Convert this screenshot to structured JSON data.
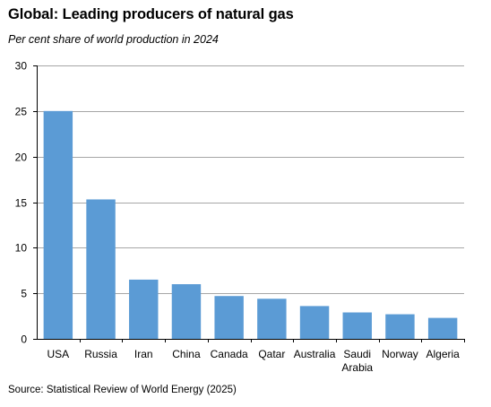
{
  "title": "Global: Leading producers of natural gas",
  "subtitle": "Per cent share of world production in 2024",
  "source": "Source: Statistical Review of World Energy (2025)",
  "colors": {
    "bar": "#5b9bd5",
    "grid": "#a6a6a6",
    "axis": "#000000"
  },
  "chart_data": {
    "type": "bar",
    "title": "Global: Leading producers of natural gas",
    "subtitle": "Per cent share of world production in 2024",
    "xlabel": "",
    "ylabel": "",
    "categories": [
      "USA",
      "Russia",
      "Iran",
      "China",
      "Canada",
      "Qatar",
      "Australia",
      "Saudi Arabia",
      "Norway",
      "Algeria"
    ],
    "category_lines": [
      [
        "USA"
      ],
      [
        "Russia"
      ],
      [
        "Iran"
      ],
      [
        "China"
      ],
      [
        "Canada"
      ],
      [
        "Qatar"
      ],
      [
        "Australia"
      ],
      [
        "Saudi",
        "Arabia"
      ],
      [
        "Norway"
      ],
      [
        "Algeria"
      ]
    ],
    "values": [
      25.0,
      15.3,
      6.5,
      6.0,
      4.7,
      4.4,
      3.6,
      2.9,
      2.7,
      2.3
    ],
    "ylim": [
      0,
      30
    ],
    "yticks": [
      0,
      5,
      10,
      15,
      20,
      25,
      30
    ],
    "grid": true,
    "legend": "none"
  }
}
